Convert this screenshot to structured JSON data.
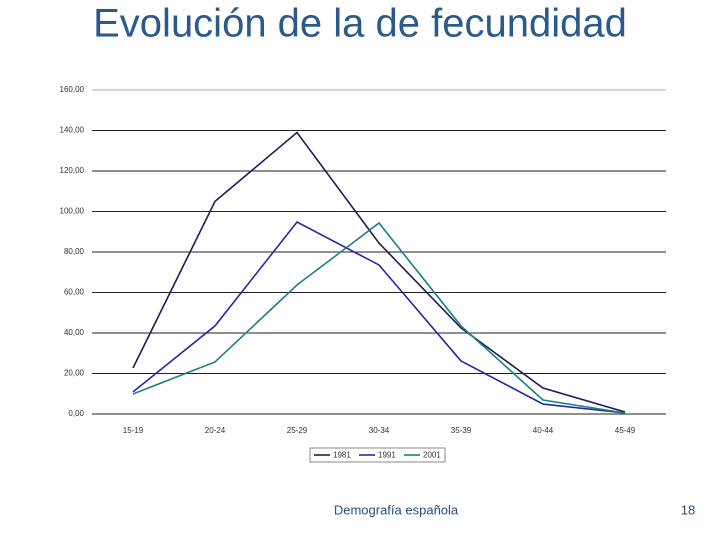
{
  "title": "Evolución de la de fecundidad",
  "chart_data": {
    "type": "line",
    "categories": [
      "15-19",
      "20-24",
      "25-29",
      "30-34",
      "35-39",
      "40-44",
      "45-49"
    ],
    "series": [
      {
        "name": "1981",
        "color": "#1c1c5c",
        "values": [
          22.7,
          105,
          139,
          84.4,
          42.5,
          12.8,
          1
        ]
      },
      {
        "name": "1991",
        "color": "#2626a6",
        "values": [
          10.9,
          43.5,
          94.8,
          73.6,
          26.2,
          4.9,
          0.5
        ]
      },
      {
        "name": "2001",
        "color": "#1a8080",
        "values": [
          9.9,
          25.7,
          63.7,
          94.3,
          43.5,
          6.9,
          0.5
        ]
      }
    ],
    "ylim": [
      0,
      160
    ],
    "yticks": [
      {
        "value": 0,
        "label": "0,00"
      },
      {
        "value": 20,
        "label": "20,00"
      },
      {
        "value": 40,
        "label": "40,00"
      },
      {
        "value": 60,
        "label": "60,00"
      },
      {
        "value": 80,
        "label": "80,00"
      },
      {
        "value": 100,
        "label": "100,00"
      },
      {
        "value": 120,
        "label": "120,00"
      },
      {
        "value": 140,
        "label": "140,00"
      },
      {
        "value": 160,
        "label": "160,00"
      }
    ],
    "grid": true,
    "legend": "bottom"
  },
  "footer": {
    "text": "Demografía española",
    "page": 18
  }
}
